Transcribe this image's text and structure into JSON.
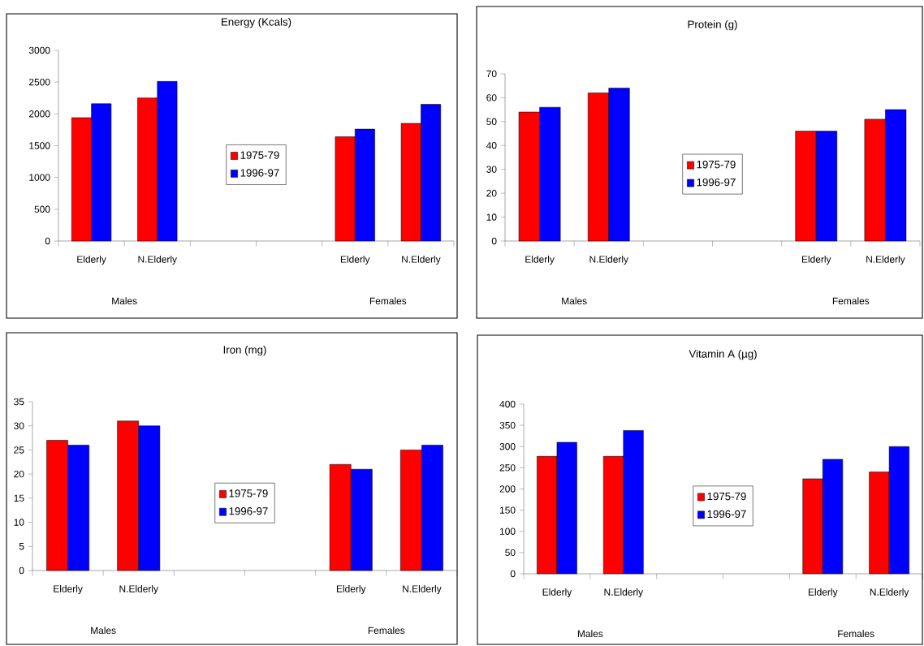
{
  "chart_data": [
    {
      "type": "bar",
      "title": "Energy (Kcals)",
      "categories": [
        "Elderly",
        "N.Elderly",
        null,
        null,
        "Elderly",
        "N.Elderly"
      ],
      "series": [
        {
          "name": "1975-79",
          "color": "#ff0000",
          "values": [
            1940,
            2250,
            null,
            null,
            1640,
            1850
          ]
        },
        {
          "name": "1996-97",
          "color": "#0000ff",
          "values": [
            2160,
            2510,
            null,
            null,
            1760,
            2150
          ]
        }
      ],
      "ylim": [
        0,
        3000
      ],
      "yticks": [
        0,
        500,
        1000,
        1500,
        2000,
        2500,
        3000
      ],
      "legend": "center",
      "annotations": [
        "Males",
        "Females"
      ]
    },
    {
      "type": "bar",
      "title": "Protein (g)",
      "categories": [
        "Elderly",
        "N.Elderly",
        null,
        null,
        "Elderly",
        "N.Elderly"
      ],
      "series": [
        {
          "name": "1975-79",
          "color": "#ff0000",
          "values": [
            54,
            62,
            null,
            null,
            46,
            51
          ]
        },
        {
          "name": "1996-97",
          "color": "#0000ff",
          "values": [
            56,
            64,
            null,
            null,
            46,
            55
          ]
        }
      ],
      "ylim": [
        0,
        70
      ],
      "yticks": [
        0,
        10,
        20,
        30,
        40,
        50,
        60,
        70
      ],
      "legend": "center",
      "annotations": [
        "Males",
        "Females"
      ]
    },
    {
      "type": "bar",
      "title": "Iron (mg)",
      "categories": [
        "Elderly",
        "N.Elderly",
        null,
        null,
        "Elderly",
        "N.Elderly"
      ],
      "series": [
        {
          "name": "1975-79",
          "color": "#ff0000",
          "values": [
            27,
            31,
            null,
            null,
            22,
            25
          ]
        },
        {
          "name": "1996-97",
          "color": "#0000ff",
          "values": [
            26,
            30,
            null,
            null,
            21,
            26
          ]
        }
      ],
      "ylim": [
        0,
        35
      ],
      "yticks": [
        0,
        5,
        10,
        15,
        20,
        25,
        30,
        35
      ],
      "legend": "center",
      "annotations": [
        "Males",
        "Females"
      ]
    },
    {
      "type": "bar",
      "title": "Vitamin A (µg)",
      "categories": [
        "Elderly",
        "N.Elderly",
        null,
        null,
        "Elderly",
        "N.Elderly"
      ],
      "series": [
        {
          "name": "1975-79",
          "color": "#ff0000",
          "values": [
            277,
            277,
            null,
            null,
            224,
            240
          ]
        },
        {
          "name": "1996-97",
          "color": "#0000ff",
          "values": [
            310,
            338,
            null,
            null,
            270,
            300
          ]
        }
      ],
      "ylim": [
        0,
        400
      ],
      "yticks": [
        0,
        50,
        100,
        150,
        200,
        250,
        300,
        350,
        400
      ],
      "legend": "center",
      "annotations": [
        "Males",
        "Females"
      ]
    }
  ]
}
